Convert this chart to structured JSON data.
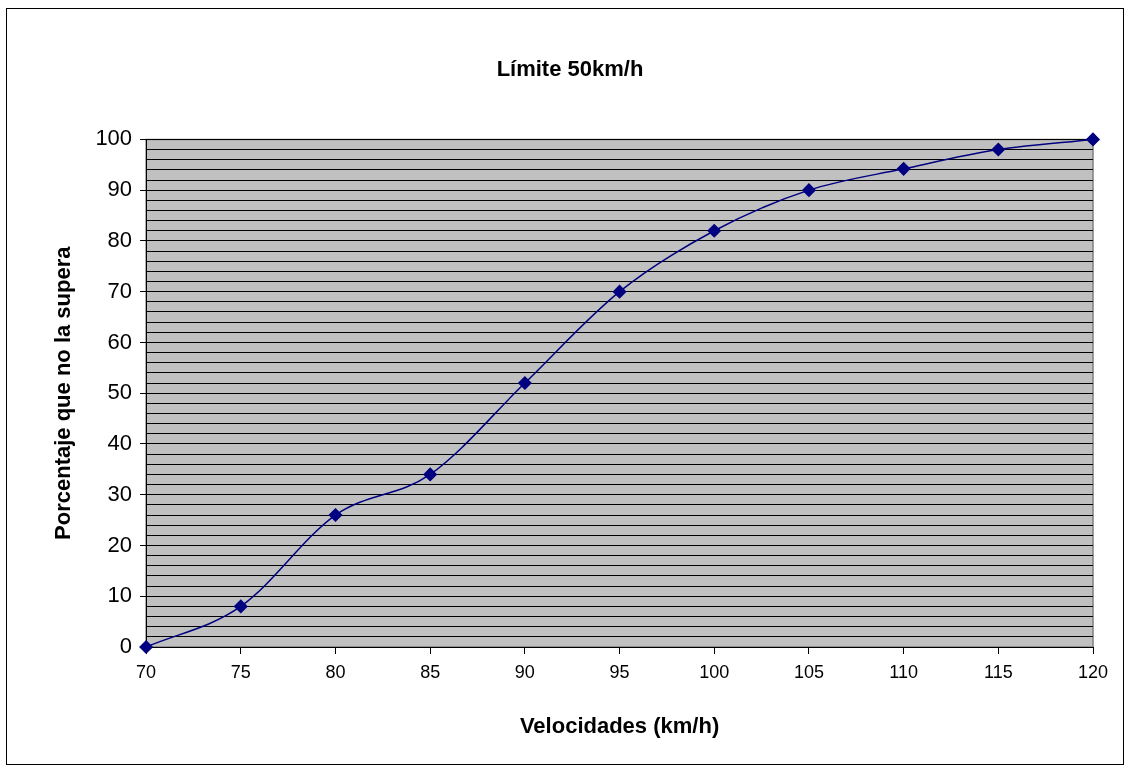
{
  "chart_data": {
    "type": "line",
    "title": "Límite 50km/h",
    "xlabel": "Velocidades (km/h)",
    "ylabel": "Porcentaje que no la supera",
    "x": [
      70,
      75,
      80,
      85,
      90,
      95,
      100,
      105,
      110,
      115,
      120
    ],
    "series": [
      {
        "color": "#000080",
        "values": [
          0,
          8,
          26,
          34,
          52,
          70,
          82,
          90,
          94.2,
          98,
          100
        ]
      }
    ],
    "xlim": [
      70,
      120
    ],
    "xticks": [
      70,
      75,
      80,
      85,
      90,
      95,
      100,
      105,
      110,
      115,
      120
    ],
    "ylim": [
      0,
      100
    ],
    "yticks": [
      0,
      {
        "value": 2,
        "label": null
      },
      {
        "value": 4,
        "label": null
      },
      {
        "value": 6,
        "label": null
      },
      {
        "value": 8,
        "label": null
      },
      10,
      {
        "value": 12,
        "label": null
      },
      {
        "value": 14,
        "label": null
      },
      {
        "value": 16,
        "label": null
      },
      {
        "value": 18,
        "label": null
      },
      20,
      {
        "value": 22,
        "label": null
      },
      {
        "value": 24,
        "label": null
      },
      {
        "value": 26,
        "label": null
      },
      {
        "value": 28,
        "label": null
      },
      30,
      {
        "value": 32,
        "label": null
      },
      {
        "value": 34,
        "label": null
      },
      {
        "value": 36,
        "label": null
      },
      {
        "value": 38,
        "label": null
      },
      40,
      {
        "value": 42,
        "label": null
      },
      {
        "value": 44,
        "label": null
      },
      {
        "value": 46,
        "label": null
      },
      {
        "value": 48,
        "label": null
      },
      50,
      {
        "value": 52,
        "label": null
      },
      {
        "value": 54,
        "label": null
      },
      {
        "value": 56,
        "label": null
      },
      {
        "value": 58,
        "label": null
      },
      60,
      {
        "value": 62,
        "label": null
      },
      {
        "value": 64,
        "label": null
      },
      {
        "value": 66,
        "label": null
      },
      {
        "value": 68,
        "label": null
      },
      70,
      {
        "value": 72,
        "label": null
      },
      {
        "value": 74,
        "label": null
      },
      {
        "value": 76,
        "label": null
      },
      {
        "value": 78,
        "label": null
      },
      80,
      {
        "value": 82,
        "label": null
      },
      {
        "value": 84,
        "label": null
      },
      {
        "value": 86,
        "label": null
      },
      {
        "value": 88,
        "label": null
      },
      90,
      {
        "value": 92,
        "label": null
      },
      {
        "value": 94,
        "label": null
      },
      {
        "value": 96,
        "label": null
      },
      {
        "value": 98,
        "label": null
      },
      100
    ],
    "grid": "y",
    "legend": false,
    "marker": "diamond",
    "line_style": "solid"
  }
}
